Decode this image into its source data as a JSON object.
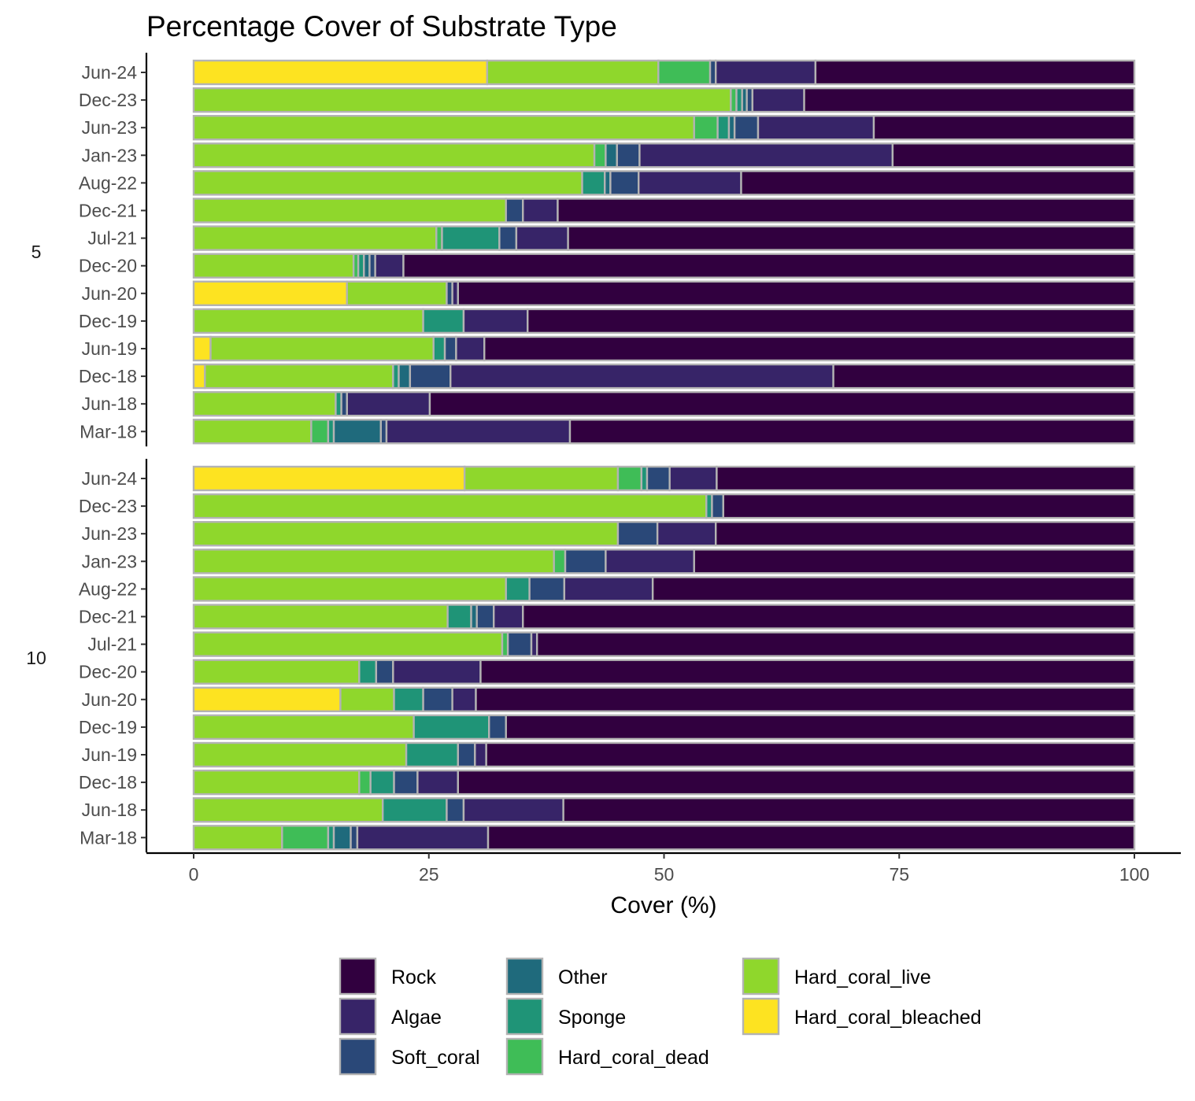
{
  "chart_data": {
    "type": "bar",
    "orientation": "horizontal",
    "stacked": true,
    "title": "Percentage Cover of Substrate Type",
    "xlabel": "Cover (%)",
    "ylabel": "",
    "xlim": [
      0,
      100
    ],
    "xticks": [
      "0",
      "25",
      "50",
      "75",
      "100"
    ],
    "grid": false,
    "legend_position": "bottom",
    "stack_order": [
      "Hard_coral_bleached",
      "Hard_coral_live",
      "Hard_coral_dead",
      "Sponge",
      "Other",
      "Soft_coral",
      "Algae",
      "Rock"
    ],
    "legend": [
      {
        "name": "Rock",
        "color": "#31003f"
      },
      {
        "name": "Algae",
        "color": "#372468"
      },
      {
        "name": "Soft_coral",
        "color": "#2a4878"
      },
      {
        "name": "Other",
        "color": "#1f6a7c"
      },
      {
        "name": "Sponge",
        "color": "#1f9477"
      },
      {
        "name": "Hard_coral_dead",
        "color": "#3fbd57"
      },
      {
        "name": "Hard_coral_live",
        "color": "#8fd72c"
      },
      {
        "name": "Hard_coral_bleached",
        "color": "#fde321"
      }
    ],
    "panels": [
      {
        "label": "5",
        "categories": [
          "Jun-24",
          "Dec-23",
          "Jun-23",
          "Jan-23",
          "Aug-22",
          "Dec-21",
          "Jul-21",
          "Dec-20",
          "Jun-20",
          "Dec-19",
          "Jun-19",
          "Dec-18",
          "Jun-18",
          "Mar-18"
        ],
        "series": [
          {
            "name": "Hard_coral_bleached",
            "values": [
              31.2,
              0,
              0,
              0,
              0,
              0,
              0,
              0,
              16.3,
              0,
              1.8,
              1.2,
              0,
              0
            ]
          },
          {
            "name": "Hard_coral_live",
            "values": [
              18.2,
              57.1,
              53.2,
              42.6,
              41.3,
              33.2,
              25.8,
              17.0,
              10.6,
              24.4,
              23.7,
              20.0,
              15.1,
              12.5
            ]
          },
          {
            "name": "Hard_coral_dead",
            "values": [
              5.5,
              0.6,
              2.5,
              1.2,
              0,
              0,
              0.6,
              0.5,
              0,
              0,
              0,
              0,
              0,
              1.8
            ]
          },
          {
            "name": "Sponge",
            "values": [
              0,
              0.6,
              1.2,
              0,
              2.4,
              0,
              6.1,
              0.6,
              0,
              4.3,
              1.2,
              0.6,
              0.6,
              0.6
            ]
          },
          {
            "name": "Other",
            "values": [
              0,
              0.5,
              0.6,
              1.2,
              0.6,
              0,
              0,
              0.6,
              0,
              0,
              0,
              1.2,
              0,
              5.0
            ]
          },
          {
            "name": "Soft_coral",
            "values": [
              0.6,
              0.6,
              2.5,
              2.4,
              3.0,
              1.8,
              1.8,
              0.6,
              0.6,
              0,
              1.2,
              4.3,
              0.6,
              0.6
            ]
          },
          {
            "name": "Algae",
            "values": [
              10.6,
              5.5,
              12.3,
              26.9,
              10.9,
              3.7,
              5.5,
              3.0,
              0.6,
              6.8,
              3.0,
              40.7,
              8.8,
              19.5
            ]
          },
          {
            "name": "Rock",
            "values": [
              33.9,
              35.1,
              27.7,
              25.7,
              41.8,
              61.3,
              60.2,
              77.7,
              71.9,
              64.5,
              69.1,
              32.0,
              74.9,
              60.0
            ]
          }
        ]
      },
      {
        "label": "10",
        "categories": [
          "Jun-24",
          "Dec-23",
          "Jun-23",
          "Jan-23",
          "Aug-22",
          "Dec-21",
          "Jul-21",
          "Dec-20",
          "Jun-20",
          "Dec-19",
          "Jun-19",
          "Dec-18",
          "Jun-18",
          "Mar-18"
        ],
        "series": [
          {
            "name": "Hard_coral_bleached",
            "values": [
              28.8,
              0,
              0,
              0,
              0,
              0,
              0,
              0,
              15.6,
              0,
              0,
              0,
              0,
              0
            ]
          },
          {
            "name": "Hard_coral_live",
            "values": [
              16.3,
              54.5,
              45.1,
              38.3,
              33.2,
              27.0,
              32.8,
              17.6,
              5.7,
              23.4,
              22.6,
              17.6,
              20.1,
              9.4
            ]
          },
          {
            "name": "Hard_coral_dead",
            "values": [
              2.5,
              0,
              0,
              1.2,
              0,
              0,
              0.6,
              0,
              0,
              0,
              0,
              1.2,
              0,
              4.9
            ]
          },
          {
            "name": "Sponge",
            "values": [
              0.6,
              0.6,
              0,
              0,
              2.5,
              2.5,
              0,
              1.8,
              3.1,
              8.0,
              5.5,
              2.5,
              6.8,
              0.6
            ]
          },
          {
            "name": "Other",
            "values": [
              0,
              0,
              0,
              0,
              0,
              0.6,
              0,
              0,
              0,
              0,
              0,
              0,
              0,
              1.8
            ]
          },
          {
            "name": "Soft_coral",
            "values": [
              2.4,
              1.2,
              4.2,
              4.3,
              3.7,
              1.8,
              2.5,
              1.8,
              3.1,
              1.8,
              1.8,
              2.5,
              1.8,
              0.7
            ]
          },
          {
            "name": "Algae",
            "values": [
              5.0,
              0,
              6.2,
              9.4,
              9.4,
              3.1,
              0.6,
              9.3,
              2.5,
              0,
              1.2,
              4.3,
              10.6,
              13.9
            ]
          },
          {
            "name": "Rock",
            "values": [
              44.4,
              43.7,
              44.5,
              46.8,
              51.2,
              65.0,
              63.5,
              69.5,
              70.0,
              66.8,
              68.9,
              71.9,
              60.7,
              68.7
            ]
          }
        ]
      }
    ]
  }
}
